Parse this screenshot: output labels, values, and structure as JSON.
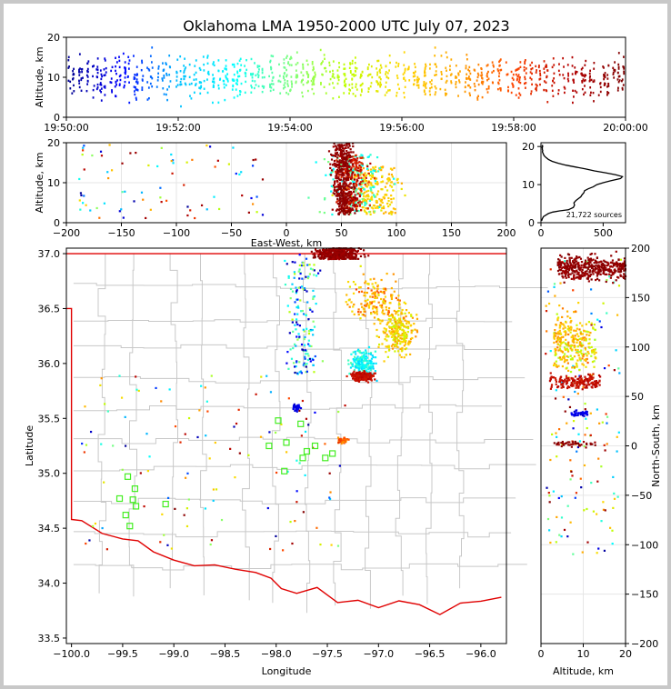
{
  "title": "Oklahoma LMA 1950-2000 UTC July 07, 2023",
  "chart_data": [
    {
      "id": "time_altitude",
      "type": "scatter",
      "xlabel": "",
      "ylabel": "Altitude, km",
      "xlim": [
        "19:50:00",
        "20:00:00"
      ],
      "ylim": [
        0,
        20
      ],
      "xticks": [
        "19:50:00",
        "19:52:00",
        "19:54:00",
        "19:56:00",
        "19:58:00",
        "20:00:00"
      ],
      "yticks": [
        "0",
        "10",
        "20"
      ],
      "color_by": "time",
      "colormap": [
        "#00008b",
        "#0000ff",
        "#00bfff",
        "#00ffff",
        "#7fff7f",
        "#bfff00",
        "#ffd700",
        "#ffa500",
        "#ff4500",
        "#b40000",
        "#7f0000"
      ]
    },
    {
      "id": "ew_altitude",
      "type": "scatter",
      "xlabel": "East-West, km",
      "ylabel": "Altitude, km",
      "xlim": [
        -200,
        200
      ],
      "ylim": [
        0,
        20
      ],
      "xticks": [
        "−200",
        "−150",
        "−100",
        "−50",
        "0",
        "50",
        "100",
        "150",
        "200"
      ],
      "yticks": [
        "0",
        "10",
        "20"
      ],
      "grid": true
    },
    {
      "id": "altitude_histogram",
      "type": "line",
      "xlabel": "",
      "ylabel": "",
      "xlim": [
        0,
        680
      ],
      "ylim": [
        0,
        21
      ],
      "xticks": [
        "0",
        "500"
      ],
      "yticks": [
        "0",
        "10",
        "20"
      ],
      "annotation": "21,722 sources",
      "x": [
        5,
        10,
        20,
        40,
        60,
        95,
        150,
        220,
        260,
        270,
        265,
        280,
        300,
        320,
        330,
        345,
        350,
        380,
        420,
        450,
        500,
        560,
        640,
        655,
        600,
        520,
        430,
        360,
        280,
        200,
        140,
        90,
        60,
        40,
        25,
        18,
        12,
        14,
        10,
        12,
        8,
        14,
        10,
        15
      ],
      "y": [
        0.5,
        1.0,
        1.6,
        2.0,
        2.4,
        2.8,
        3.1,
        3.4,
        4.0,
        4.6,
        5.2,
        5.8,
        6.3,
        6.8,
        7.3,
        7.9,
        8.4,
        8.9,
        9.4,
        10.0,
        10.5,
        11.0,
        11.6,
        12.1,
        12.6,
        13.1,
        13.6,
        14.1,
        14.6,
        15.1,
        15.6,
        16.1,
        16.6,
        17.1,
        17.6,
        18.1,
        18.6,
        19.0,
        19.3,
        19.6,
        19.8,
        20.0,
        20.2,
        20.4
      ]
    },
    {
      "id": "plan_view",
      "type": "scatter",
      "xlabel": "Longitude",
      "ylabel": "Latitude",
      "xlim": [
        -100.05,
        -95.75
      ],
      "ylim": [
        33.45,
        37.05
      ],
      "xticks": [
        "−100.0",
        "−99.5",
        "−99.0",
        "−98.5",
        "−98.0",
        "−97.5",
        "−97.0",
        "−96.5",
        "−96.0"
      ],
      "yticks": [
        "33.5",
        "34.0",
        "34.5",
        "35.0",
        "35.5",
        "36.0",
        "36.5",
        "37.0"
      ],
      "grid": true,
      "stations": [
        [
          -99.45,
          34.97
        ],
        [
          -99.38,
          34.86
        ],
        [
          -99.53,
          34.77
        ],
        [
          -99.4,
          34.76
        ],
        [
          -99.37,
          34.7
        ],
        [
          -99.08,
          34.72
        ],
        [
          -99.47,
          34.62
        ],
        [
          -99.43,
          34.52
        ],
        [
          -97.98,
          35.48
        ],
        [
          -97.76,
          35.45
        ],
        [
          -97.9,
          35.28
        ],
        [
          -98.07,
          35.25
        ],
        [
          -97.62,
          35.25
        ],
        [
          -97.7,
          35.2
        ],
        [
          -97.45,
          35.18
        ],
        [
          -97.52,
          35.14
        ],
        [
          -97.74,
          35.14
        ],
        [
          -97.92,
          35.02
        ]
      ]
    },
    {
      "id": "ns_altitude",
      "type": "scatter",
      "xlabel": "Altitude, km",
      "ylabel": "North-South, km",
      "xlim": [
        0,
        20
      ],
      "ylim": [
        -200,
        200
      ],
      "xticks": [
        "0",
        "10",
        "20"
      ],
      "yticks": [
        "−200",
        "−150",
        "−100",
        "−50",
        "0",
        "50",
        "100",
        "150",
        "200"
      ],
      "grid": true
    }
  ]
}
